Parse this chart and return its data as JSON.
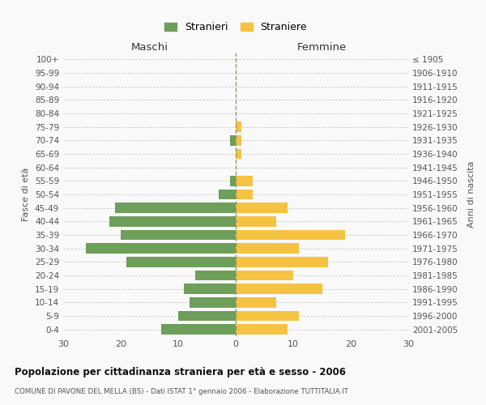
{
  "age_groups": [
    "100+",
    "95-99",
    "90-94",
    "85-89",
    "80-84",
    "75-79",
    "70-74",
    "65-69",
    "60-64",
    "55-59",
    "50-54",
    "45-49",
    "40-44",
    "35-39",
    "30-34",
    "25-29",
    "20-24",
    "15-19",
    "10-14",
    "5-9",
    "0-4"
  ],
  "birth_years": [
    "≤ 1905",
    "1906-1910",
    "1911-1915",
    "1916-1920",
    "1921-1925",
    "1926-1930",
    "1931-1935",
    "1936-1940",
    "1941-1945",
    "1946-1950",
    "1951-1955",
    "1956-1960",
    "1961-1965",
    "1966-1970",
    "1971-1975",
    "1976-1980",
    "1981-1985",
    "1986-1990",
    "1991-1995",
    "1996-2000",
    "2001-2005"
  ],
  "males": [
    0,
    0,
    0,
    0,
    0,
    0,
    1,
    0,
    0,
    1,
    3,
    21,
    22,
    20,
    26,
    19,
    7,
    9,
    8,
    10,
    13
  ],
  "females": [
    0,
    0,
    0,
    0,
    0,
    1,
    1,
    1,
    0,
    3,
    3,
    9,
    7,
    19,
    11,
    16,
    10,
    15,
    7,
    11,
    9
  ],
  "male_color": "#6d9e5a",
  "female_color": "#f5c242",
  "male_label": "Stranieri",
  "female_label": "Straniere",
  "title": "Popolazione per cittadinanza straniera per età e sesso - 2006",
  "subtitle": "COMUNE DI PAVONE DEL MELLA (BS) - Dati ISTAT 1° gennaio 2006 - Elaborazione TUTTITALIA.IT",
  "xlabel_left": "Maschi",
  "xlabel_right": "Femmine",
  "ylabel_left": "Fasce di età",
  "ylabel_right": "Anni di nascita",
  "xlim": 30,
  "background_color": "#f9f9f9",
  "grid_color": "#cccccc",
  "vline_color": "#999966"
}
